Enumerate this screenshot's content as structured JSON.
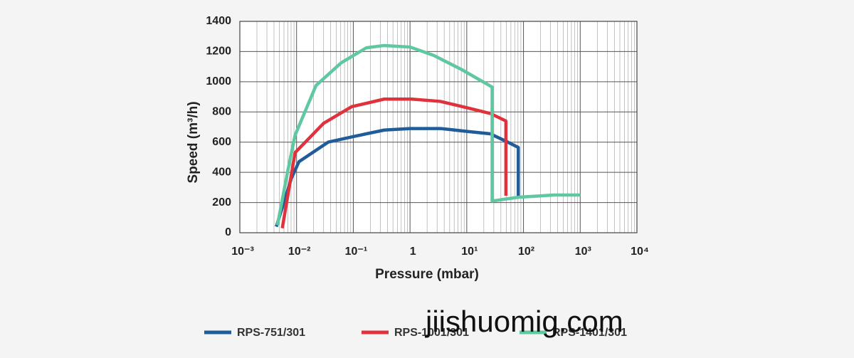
{
  "chart_data": {
    "type": "line",
    "xlabel": "Pressure (mbar)",
    "ylabel": "Speed (m³/h)",
    "xscale": "log",
    "xlim": [
      0.001,
      10000
    ],
    "ylim": [
      0,
      1400
    ],
    "xticks": [
      {
        "value": 0.001,
        "label": "10⁻³"
      },
      {
        "value": 0.01,
        "label": "10⁻²"
      },
      {
        "value": 0.1,
        "label": "10⁻¹"
      },
      1,
      {
        "value": 10,
        "label": "10¹"
      },
      {
        "value": 100,
        "label": "10²"
      },
      {
        "value": 1000,
        "label": "10³"
      },
      {
        "value": 10000,
        "label": "10⁴"
      }
    ],
    "yticks": [
      0,
      200,
      400,
      600,
      800,
      1000,
      1200,
      1400
    ],
    "grid": true,
    "minor_grid": true,
    "legend_position": "bottom",
    "watermark": "jiishuomig.com",
    "series": [
      {
        "name": "RPS-751/301",
        "color": "#1f5c99",
        "x": [
          0.0044,
          0.0081,
          0.011,
          0.036,
          0.11,
          0.35,
          1,
          3.5,
          10.8,
          26,
          53,
          81,
          81
        ],
        "values": [
          40,
          360,
          470,
          600,
          640,
          680,
          690,
          690,
          670,
          655,
          600,
          565,
          240
        ]
      },
      {
        "name": "RPS-1001/301",
        "color": "#e0323c",
        "x": [
          0.0056,
          0.0094,
          0.03,
          0.094,
          0.35,
          1.07,
          3.4,
          10.8,
          26,
          49,
          49
        ],
        "values": [
          30,
          530,
          725,
          835,
          885,
          885,
          870,
          825,
          790,
          740,
          245
        ]
      },
      {
        "name": "RPS-1401/301",
        "color": "#5fc8a0",
        "x": [
          0.0046,
          0.007,
          0.0094,
          0.022,
          0.061,
          0.17,
          0.35,
          1,
          2.6,
          8.2,
          28,
          28,
          81,
          347,
          1000
        ],
        "values": [
          50,
          410,
          645,
          975,
          1125,
          1225,
          1240,
          1230,
          1175,
          1080,
          965,
          210,
          235,
          250,
          250
        ]
      }
    ]
  }
}
